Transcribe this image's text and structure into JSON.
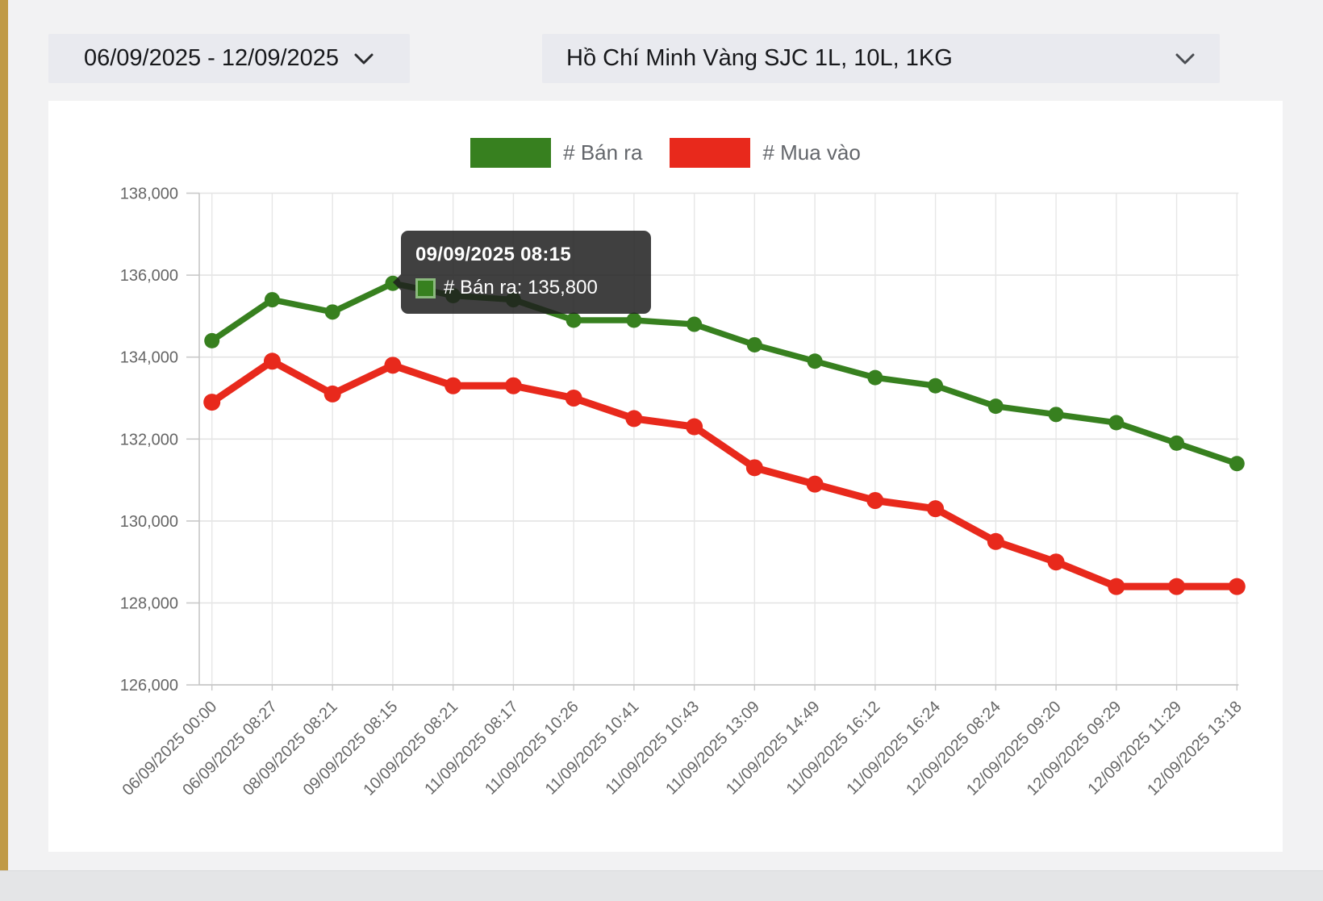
{
  "page": {
    "background": "#f2f2f3",
    "accent_bar_color": "#c09a45",
    "card_color": "#ffffff"
  },
  "filters": {
    "date_range": {
      "value": "06/09/2025 - 12/09/2025",
      "icon": "chevron-down"
    },
    "market_select": {
      "value": "Hồ Chí Minh Vàng SJC 1L, 10L, 1KG",
      "icon": "chevron-down"
    }
  },
  "legend": [
    {
      "label": "# Bán ra",
      "color": "#37801f"
    },
    {
      "label": "# Mua vào",
      "color": "#e8291c"
    }
  ],
  "tooltip": {
    "title": "09/09/2025 08:15",
    "series": "# Bán ra",
    "value": "135,800",
    "text": "# Bán ra: 135,800",
    "swatch_color": "#37801f",
    "anchor_x_index": 3
  },
  "chart_data": {
    "type": "line",
    "title": "",
    "xlabel": "",
    "ylabel": "",
    "grid": true,
    "legend_position": "top",
    "ylim": [
      126000,
      138000
    ],
    "ytick_step": 2000,
    "yticks": [
      {
        "value": 126000,
        "label": "126,000"
      },
      {
        "value": 128000,
        "label": "128,000"
      },
      {
        "value": 130000,
        "label": "130,000"
      },
      {
        "value": 132000,
        "label": "132,000"
      },
      {
        "value": 134000,
        "label": "134,000"
      },
      {
        "value": 136000,
        "label": "136,000"
      },
      {
        "value": 138000,
        "label": "138,000"
      }
    ],
    "x": [
      "06/09/2025 00:00",
      "06/09/2025 08:27",
      "08/09/2025 08:21",
      "09/09/2025 08:15",
      "10/09/2025 08:21",
      "11/09/2025 08:17",
      "11/09/2025 10:26",
      "11/09/2025 10:41",
      "11/09/2025 10:43",
      "11/09/2025 13:09",
      "11/09/2025 14:49",
      "11/09/2025 16:12",
      "11/09/2025 16:24",
      "12/09/2025 08:24",
      "12/09/2025 09:20",
      "12/09/2025 09:29",
      "12/09/2025 11:29",
      "12/09/2025 13:18"
    ],
    "series": [
      {
        "name": "# Bán ra",
        "color": "#37801f",
        "values": [
          134400,
          135400,
          135100,
          135800,
          135500,
          135400,
          134900,
          134900,
          134800,
          134300,
          133900,
          133500,
          133300,
          132800,
          132600,
          132400,
          131900,
          131400
        ]
      },
      {
        "name": "# Mua vào",
        "color": "#e8291c",
        "values": [
          132900,
          133900,
          133100,
          133800,
          133300,
          133300,
          133000,
          132500,
          132300,
          131300,
          130900,
          130500,
          130300,
          129500,
          129000,
          128400,
          128400,
          128400
        ]
      }
    ]
  }
}
